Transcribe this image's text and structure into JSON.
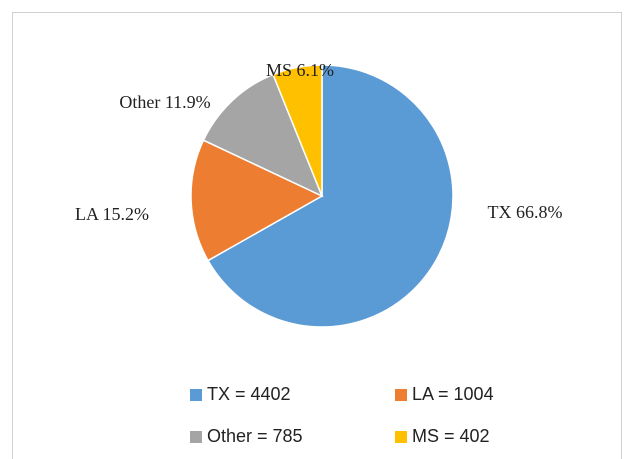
{
  "chart_data": {
    "type": "pie",
    "categories": [
      "TX",
      "LA",
      "Other",
      "MS"
    ],
    "values": [
      66.8,
      15.2,
      11.9,
      6.1
    ],
    "value_labels": [
      "TX 66.8%",
      "LA 15.2%",
      "Other 11.9%",
      "MS 6.1%"
    ],
    "legend_labels": [
      "TX = 4402",
      "LA = 1004",
      "Other = 785",
      "MS = 402"
    ],
    "colors": [
      "#5b9bd5",
      "#ed7d31",
      "#a5a5a5",
      "#ffc000"
    ],
    "legend": "bottom"
  }
}
